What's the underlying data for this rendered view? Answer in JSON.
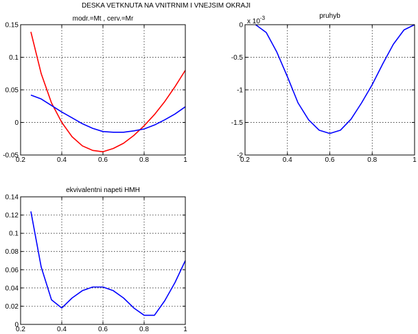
{
  "figure": {
    "suptitle": "DESKA VETKNUTA NA VNITRNIM I VNEJSIM OKRAJI"
  },
  "chart_data": [
    {
      "type": "line",
      "title": "modr.=Mt , cerv.=Mr",
      "xlabel": "",
      "ylabel": "",
      "xlim": [
        0.2,
        1.0
      ],
      "ylim": [
        -0.05,
        0.15
      ],
      "xticks": [
        0.2,
        0.4,
        0.6,
        0.8,
        1.0
      ],
      "xtick_labels": [
        "0.2",
        "0.4",
        "0.6",
        "0.8",
        "1"
      ],
      "yticks": [
        -0.05,
        0,
        0.05,
        0.1,
        0.15
      ],
      "ytick_labels": [
        "-0.05",
        "0",
        "0.05",
        "0.1",
        "0.15"
      ],
      "grid": true,
      "exponent_label": "",
      "series": [
        {
          "color": "#ff0000",
          "x": [
            0.25,
            0.3,
            0.35,
            0.4,
            0.45,
            0.5,
            0.55,
            0.6,
            0.65,
            0.7,
            0.75,
            0.8,
            0.85,
            0.9,
            0.95,
            1.0
          ],
          "y": [
            0.139,
            0.075,
            0.03,
            0.0,
            -0.022,
            -0.036,
            -0.043,
            -0.045,
            -0.04,
            -0.032,
            -0.02,
            -0.005,
            0.012,
            0.032,
            0.055,
            0.08
          ]
        },
        {
          "color": "#0000ff",
          "x": [
            0.25,
            0.3,
            0.35,
            0.4,
            0.45,
            0.5,
            0.55,
            0.6,
            0.65,
            0.7,
            0.75,
            0.8,
            0.85,
            0.9,
            0.95,
            1.0
          ],
          "y": [
            0.042,
            0.036,
            0.026,
            0.016,
            0.007,
            -0.002,
            -0.009,
            -0.014,
            -0.015,
            -0.015,
            -0.013,
            -0.01,
            -0.004,
            0.004,
            0.013,
            0.024
          ]
        }
      ]
    },
    {
      "type": "line",
      "title": "pruhyb",
      "xlabel": "",
      "ylabel": "",
      "xlim": [
        0.2,
        1.0
      ],
      "ylim": [
        -2.0,
        0.0
      ],
      "xticks": [
        0.2,
        0.4,
        0.6,
        0.8,
        1.0
      ],
      "xtick_labels": [
        "0.2",
        "0.4",
        "0.6",
        "0.8",
        "1"
      ],
      "yticks": [
        -2.0,
        -1.5,
        -1.0,
        -0.5,
        0.0
      ],
      "ytick_labels": [
        "-2",
        "-1.5",
        "-1",
        "-0.5",
        "0"
      ],
      "grid": true,
      "exponent_label": "x 10",
      "exponent_power": "-3",
      "series": [
        {
          "color": "#0000ff",
          "x": [
            0.25,
            0.3,
            0.35,
            0.4,
            0.45,
            0.5,
            0.55,
            0.6,
            0.65,
            0.7,
            0.75,
            0.8,
            0.85,
            0.9,
            0.95,
            1.0
          ],
          "y": [
            0.0,
            -0.12,
            -0.42,
            -0.8,
            -1.2,
            -1.46,
            -1.62,
            -1.67,
            -1.62,
            -1.45,
            -1.2,
            -0.92,
            -0.6,
            -0.3,
            -0.08,
            0.0
          ]
        }
      ]
    },
    {
      "type": "line",
      "title": "ekvivalentni napeti HMH",
      "xlabel": "",
      "ylabel": "",
      "xlim": [
        0.2,
        1.0
      ],
      "ylim": [
        0,
        0.14
      ],
      "xticks": [
        0.2,
        0.4,
        0.6,
        0.8,
        1.0
      ],
      "xtick_labels": [
        "0.2",
        "0.4",
        "0.6",
        "0.8",
        "1"
      ],
      "yticks": [
        0,
        0.02,
        0.04,
        0.06,
        0.08,
        0.1,
        0.12,
        0.14
      ],
      "ytick_labels": [
        "0",
        "0.02",
        "0.04",
        "0.06",
        "0.08",
        "0.1",
        "0.12",
        "0.14"
      ],
      "grid": true,
      "exponent_label": "",
      "series": [
        {
          "color": "#0000ff",
          "x": [
            0.25,
            0.3,
            0.35,
            0.4,
            0.45,
            0.5,
            0.55,
            0.6,
            0.65,
            0.7,
            0.75,
            0.8,
            0.85,
            0.9,
            0.95,
            1.0
          ],
          "y": [
            0.124,
            0.063,
            0.027,
            0.018,
            0.029,
            0.037,
            0.041,
            0.041,
            0.037,
            0.029,
            0.018,
            0.01,
            0.01,
            0.026,
            0.046,
            0.07
          ]
        }
      ]
    }
  ]
}
